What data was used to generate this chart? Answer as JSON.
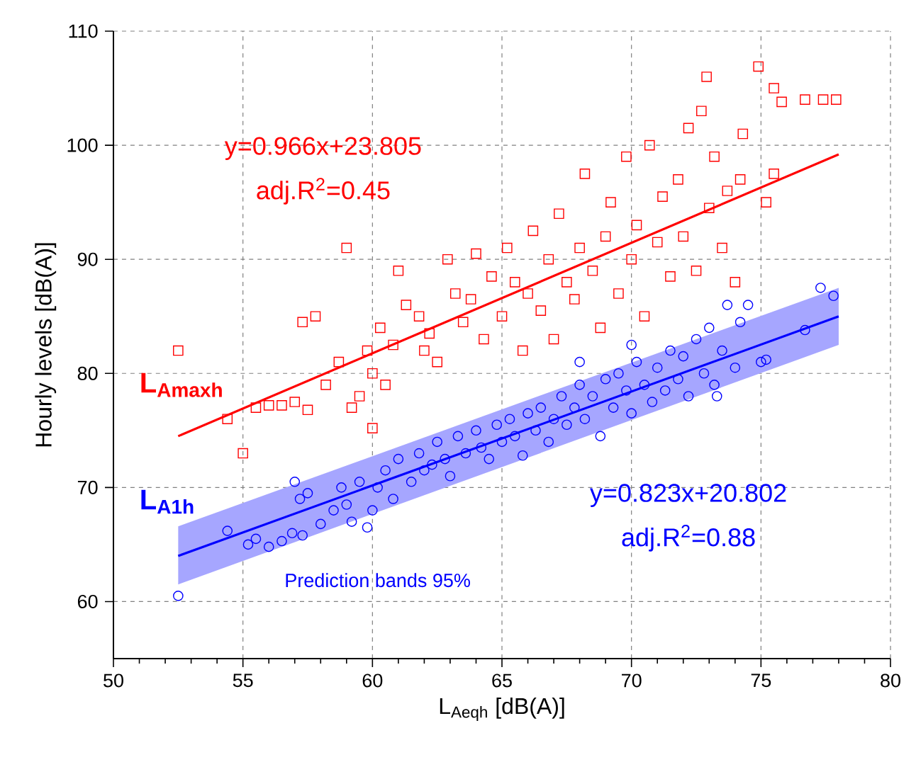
{
  "chart_data": {
    "type": "scatter",
    "xlabel": "L$_{Aeqh}$ [dB(A)]",
    "ylabel": "Hourly levels [dB(A)]",
    "xlim": [
      50,
      80
    ],
    "ylim": [
      55,
      110
    ],
    "xticks": [
      50,
      55,
      60,
      65,
      70,
      75,
      80
    ],
    "yticks": [
      60,
      70,
      80,
      90,
      100,
      110
    ],
    "grid": true,
    "annotations": [
      "y=0.966x+23.805",
      "adj.R$^{2}$=0.45",
      "y=0.823x+20.802",
      "adj.R$^{2}$=0.88",
      "Prediction bands 95%"
    ],
    "series": [
      {
        "name": "L$_{Amaxh}$",
        "marker": "square",
        "color": "#ff0000",
        "x": [
          52.5,
          54.4,
          55.0,
          55.5,
          56.0,
          56.5,
          57.0,
          57.3,
          57.5,
          57.8,
          58.2,
          58.7,
          59.0,
          59.2,
          59.5,
          59.8,
          60.0,
          60.0,
          60.3,
          60.5,
          60.8,
          61.0,
          61.3,
          61.8,
          62.0,
          62.2,
          62.5,
          62.9,
          63.2,
          63.5,
          63.8,
          64.0,
          64.3,
          64.6,
          65.0,
          65.2,
          65.5,
          65.8,
          66.0,
          66.2,
          66.5,
          66.8,
          67.0,
          67.2,
          67.5,
          67.8,
          68.0,
          68.2,
          68.5,
          68.8,
          69.0,
          69.2,
          69.5,
          69.8,
          70.0,
          70.2,
          70.5,
          70.7,
          71.0,
          71.2,
          71.5,
          71.8,
          72.0,
          72.2,
          72.5,
          72.7,
          72.9,
          73.0,
          73.2,
          73.5,
          73.7,
          74.0,
          74.2,
          74.3,
          74.9,
          75.5,
          75.8,
          76.7,
          77.4,
          77.9,
          75.2,
          75.5
        ],
        "values": [
          82.0,
          76.0,
          73.0,
          77.0,
          77.2,
          77.2,
          77.5,
          84.5,
          76.8,
          85.0,
          79.0,
          81.0,
          91.0,
          77.0,
          78.0,
          82.0,
          75.2,
          80.0,
          84.0,
          79.0,
          82.5,
          89.0,
          86.0,
          85.0,
          82.0,
          83.5,
          81.0,
          90.0,
          87.0,
          84.5,
          86.5,
          90.5,
          83.0,
          88.5,
          85.0,
          91.0,
          88.0,
          82.0,
          87.0,
          92.5,
          85.5,
          90.0,
          83.0,
          94.0,
          88.0,
          86.5,
          91.0,
          97.5,
          89.0,
          84.0,
          92.0,
          95.0,
          87.0,
          99.0,
          90.0,
          93.0,
          85.0,
          100.0,
          91.5,
          95.5,
          88.5,
          97.0,
          92.0,
          101.5,
          89.0,
          103.0,
          106.0,
          94.5,
          99.0,
          91.0,
          96.0,
          88.0,
          97.0,
          101.0,
          106.9,
          105.0,
          103.8,
          104.0,
          104.0,
          104.0,
          95.0,
          97.5
        ]
      },
      {
        "type": "line",
        "color": "#ff0000",
        "x": [
          52.5,
          78
        ],
        "values": [
          74.5,
          99.2
        ]
      },
      {
        "name": "L$_{A1h}$",
        "marker": "circle",
        "color": "#0000ff",
        "x": [
          52.5,
          54.4,
          55.2,
          55.5,
          56.0,
          56.5,
          56.9,
          57.0,
          57.2,
          57.3,
          57.5,
          58.0,
          58.5,
          58.8,
          59.0,
          59.2,
          59.5,
          59.8,
          60.0,
          60.2,
          60.5,
          60.8,
          61.0,
          61.5,
          61.8,
          62.0,
          62.3,
          62.5,
          62.8,
          63.0,
          63.3,
          63.6,
          64.0,
          64.2,
          64.5,
          64.8,
          65.0,
          65.3,
          65.5,
          65.8,
          66.0,
          66.3,
          66.5,
          66.8,
          67.0,
          67.3,
          67.5,
          67.8,
          68.0,
          68.2,
          68.5,
          68.8,
          69.0,
          69.3,
          69.5,
          69.8,
          70.0,
          70.2,
          70.5,
          70.8,
          71.0,
          71.3,
          71.5,
          71.8,
          72.0,
          72.2,
          72.5,
          72.8,
          73.0,
          73.2,
          73.5,
          73.7,
          74.0,
          74.2,
          74.5,
          75.0,
          75.2,
          76.7,
          77.3,
          77.8,
          73.3,
          68.0,
          70.0
        ],
        "values": [
          60.5,
          66.2,
          65.0,
          65.5,
          64.8,
          65.3,
          66.0,
          70.5,
          69.0,
          65.8,
          69.5,
          66.8,
          68.0,
          70.0,
          68.5,
          67.0,
          70.5,
          66.5,
          68.0,
          70.0,
          71.5,
          69.0,
          72.5,
          70.5,
          73.0,
          71.5,
          72.0,
          74.0,
          72.5,
          71.0,
          74.5,
          73.0,
          75.0,
          73.5,
          72.5,
          75.5,
          74.0,
          76.0,
          74.5,
          72.8,
          76.5,
          75.0,
          77.0,
          74.0,
          76.0,
          78.0,
          75.5,
          77.0,
          79.0,
          76.0,
          78.0,
          74.5,
          79.5,
          77.0,
          80.0,
          78.5,
          76.5,
          81.0,
          79.0,
          77.5,
          80.5,
          78.5,
          82.0,
          79.5,
          81.5,
          78.0,
          83.0,
          80.0,
          84.0,
          79.0,
          82.0,
          86.0,
          80.5,
          84.5,
          86.0,
          81.0,
          81.2,
          83.8,
          87.5,
          86.8,
          78.0,
          81.0,
          82.5
        ]
      },
      {
        "type": "line",
        "color": "#0000ff",
        "x": [
          52.5,
          78
        ],
        "values": [
          64.0,
          85.0
        ],
        "lower": [
          61.5,
          82.5
        ],
        "upper": [
          66.6,
          87.5
        ]
      }
    ]
  }
}
